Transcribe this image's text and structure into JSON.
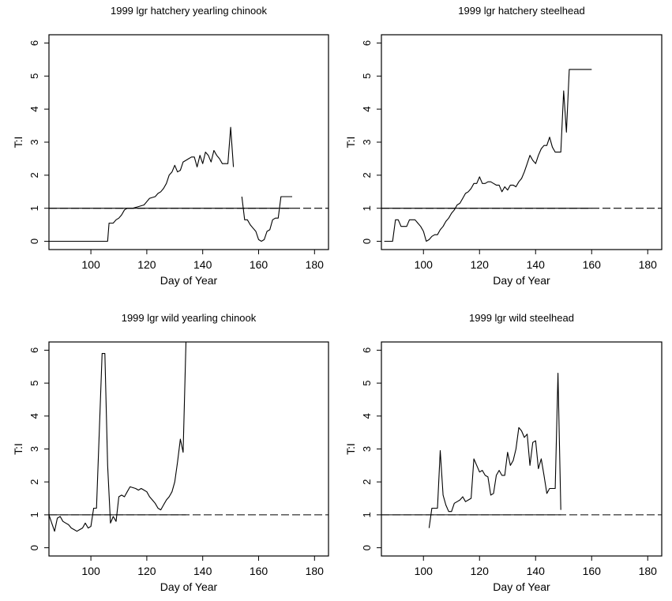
{
  "chart_data": [
    {
      "type": "line",
      "title": "1999 lgr hatchery yearling chinook",
      "xlabel": "Day of Year",
      "ylabel": "T:I",
      "xlim": [
        85,
        185
      ],
      "ylim": [
        -0.25,
        6.25
      ],
      "xticks": [
        100,
        120,
        140,
        160,
        180
      ],
      "yticks": [
        0,
        1,
        2,
        3,
        4,
        5,
        6
      ],
      "grid": false,
      "legend": "none",
      "reference_line": 1,
      "series": [
        {
          "segments": [
            [
              [
                85,
                0
              ],
              [
                106,
                0
              ],
              [
                106.5,
                0.55
              ],
              [
                108,
                0.55
              ],
              [
                109,
                0.65
              ],
              [
                110,
                0.7
              ],
              [
                111,
                0.8
              ],
              [
                112,
                0.95
              ],
              [
                113,
                1.0
              ],
              [
                115,
                1.0
              ],
              [
                117,
                1.05
              ],
              [
                119,
                1.1
              ],
              [
                120,
                1.2
              ],
              [
                121,
                1.3
              ],
              [
                123,
                1.35
              ],
              [
                124,
                1.45
              ],
              [
                125,
                1.5
              ],
              [
                126,
                1.6
              ],
              [
                127,
                1.75
              ],
              [
                128,
                2.0
              ],
              [
                129,
                2.1
              ],
              [
                130,
                2.3
              ],
              [
                131,
                2.1
              ],
              [
                132,
                2.15
              ],
              [
                133,
                2.4
              ],
              [
                134,
                2.45
              ],
              [
                135,
                2.5
              ],
              [
                136,
                2.55
              ],
              [
                137,
                2.55
              ],
              [
                138,
                2.25
              ],
              [
                139,
                2.6
              ],
              [
                140,
                2.35
              ],
              [
                141,
                2.7
              ],
              [
                142,
                2.6
              ],
              [
                143,
                2.4
              ],
              [
                144,
                2.75
              ],
              [
                145,
                2.6
              ],
              [
                146,
                2.5
              ],
              [
                147,
                2.35
              ],
              [
                148,
                2.35
              ],
              [
                149,
                2.35
              ],
              [
                150,
                3.45
              ],
              [
                151,
                2.25
              ]
            ],
            [
              [
                154,
                1.35
              ],
              [
                155,
                0.65
              ],
              [
                156,
                0.65
              ],
              [
                157,
                0.5
              ],
              [
                158,
                0.4
              ],
              [
                159,
                0.3
              ],
              [
                160,
                0.05
              ],
              [
                161,
                0.0
              ],
              [
                162,
                0.05
              ],
              [
                163,
                0.3
              ],
              [
                164,
                0.35
              ],
              [
                165,
                0.65
              ],
              [
                166,
                0.7
              ],
              [
                167,
                0.7
              ],
              [
                168,
                1.35
              ],
              [
                172,
                1.35
              ]
            ]
          ]
        }
      ]
    },
    {
      "type": "line",
      "title": "1999 lgr hatchery steelhead",
      "xlabel": "Day of Year",
      "ylabel": "T:I",
      "xlim": [
        85,
        185
      ],
      "ylim": [
        -0.25,
        6.25
      ],
      "xticks": [
        100,
        120,
        140,
        160,
        180
      ],
      "yticks": [
        0,
        1,
        2,
        3,
        4,
        5,
        6
      ],
      "grid": false,
      "legend": "none",
      "reference_line": 1,
      "series": [
        {
          "segments": [
            [
              [
                86,
                0
              ],
              [
                89,
                0
              ],
              [
                90,
                0.65
              ],
              [
                91,
                0.65
              ],
              [
                92,
                0.45
              ],
              [
                93,
                0.45
              ],
              [
                94,
                0.45
              ],
              [
                95,
                0.65
              ],
              [
                97,
                0.65
              ],
              [
                98,
                0.55
              ],
              [
                99,
                0.45
              ],
              [
                100,
                0.3
              ],
              [
                101,
                0.0
              ],
              [
                102,
                0.05
              ],
              [
                103,
                0.15
              ],
              [
                104,
                0.2
              ],
              [
                105,
                0.2
              ],
              [
                106,
                0.35
              ],
              [
                107,
                0.45
              ],
              [
                108,
                0.6
              ],
              [
                109,
                0.7
              ],
              [
                110,
                0.85
              ],
              [
                111,
                0.95
              ],
              [
                112,
                1.1
              ],
              [
                113,
                1.15
              ],
              [
                114,
                1.3
              ],
              [
                115,
                1.45
              ],
              [
                116,
                1.5
              ],
              [
                117,
                1.6
              ],
              [
                118,
                1.75
              ],
              [
                119,
                1.75
              ],
              [
                120,
                1.95
              ],
              [
                121,
                1.75
              ],
              [
                122,
                1.75
              ],
              [
                123,
                1.8
              ],
              [
                124,
                1.8
              ],
              [
                125,
                1.75
              ],
              [
                126,
                1.7
              ],
              [
                127,
                1.7
              ],
              [
                128,
                1.5
              ],
              [
                129,
                1.65
              ],
              [
                130,
                1.55
              ],
              [
                131,
                1.7
              ],
              [
                132,
                1.7
              ],
              [
                133,
                1.65
              ],
              [
                134,
                1.8
              ],
              [
                135,
                1.9
              ],
              [
                136,
                2.1
              ],
              [
                137,
                2.35
              ],
              [
                138,
                2.6
              ],
              [
                139,
                2.45
              ],
              [
                140,
                2.35
              ],
              [
                141,
                2.6
              ],
              [
                142,
                2.8
              ],
              [
                143,
                2.9
              ],
              [
                144,
                2.9
              ],
              [
                145,
                3.15
              ],
              [
                146,
                2.85
              ],
              [
                147,
                2.7
              ],
              [
                148,
                2.7
              ],
              [
                149,
                2.7
              ],
              [
                150,
                4.55
              ],
              [
                151,
                3.3
              ],
              [
                152,
                5.2
              ],
              [
                160,
                5.2
              ]
            ]
          ]
        }
      ]
    },
    {
      "type": "line",
      "title": "1999 lgr wild yearling chinook",
      "xlabel": "Day of Year",
      "ylabel": "T:I",
      "xlim": [
        85,
        185
      ],
      "ylim": [
        -0.25,
        6.25
      ],
      "xticks": [
        100,
        120,
        140,
        160,
        180
      ],
      "yticks": [
        0,
        1,
        2,
        3,
        4,
        5,
        6
      ],
      "grid": false,
      "legend": "none",
      "reference_line": 1,
      "series": [
        {
          "segments": [
            [
              [
                85,
                1.0
              ],
              [
                86,
                0.75
              ],
              [
                87,
                0.5
              ],
              [
                88,
                0.9
              ],
              [
                89,
                0.95
              ],
              [
                90,
                0.8
              ],
              [
                91,
                0.75
              ],
              [
                92,
                0.7
              ],
              [
                93,
                0.6
              ],
              [
                94,
                0.55
              ],
              [
                95,
                0.5
              ],
              [
                96,
                0.55
              ],
              [
                97,
                0.6
              ],
              [
                98,
                0.75
              ],
              [
                99,
                0.6
              ],
              [
                100,
                0.65
              ],
              [
                101,
                1.2
              ],
              [
                102,
                1.2
              ],
              [
                103,
                3.5
              ],
              [
                104,
                5.9
              ],
              [
                105,
                5.9
              ],
              [
                106,
                2.5
              ],
              [
                107,
                0.75
              ],
              [
                108,
                0.95
              ],
              [
                109,
                0.8
              ],
              [
                110,
                1.55
              ],
              [
                111,
                1.6
              ],
              [
                112,
                1.55
              ],
              [
                113,
                1.7
              ],
              [
                114,
                1.85
              ],
              [
                116,
                1.8
              ],
              [
                117,
                1.75
              ],
              [
                118,
                1.8
              ],
              [
                119,
                1.75
              ],
              [
                120,
                1.7
              ],
              [
                121,
                1.55
              ],
              [
                122,
                1.45
              ],
              [
                123,
                1.35
              ],
              [
                124,
                1.2
              ],
              [
                125,
                1.15
              ],
              [
                126,
                1.3
              ],
              [
                127,
                1.45
              ],
              [
                128,
                1.55
              ],
              [
                129,
                1.7
              ],
              [
                130,
                2.0
              ],
              [
                131,
                2.6
              ],
              [
                132,
                3.3
              ],
              [
                133,
                2.9
              ],
              [
                134,
                6.3
              ]
            ]
          ]
        }
      ]
    },
    {
      "type": "line",
      "title": "1999 lgr wild steelhead",
      "xlabel": "Day of Year",
      "ylabel": "T:I",
      "xlim": [
        85,
        185
      ],
      "ylim": [
        -0.25,
        6.25
      ],
      "xticks": [
        100,
        120,
        140,
        160,
        180
      ],
      "yticks": [
        0,
        1,
        2,
        3,
        4,
        5,
        6
      ],
      "grid": false,
      "legend": "none",
      "reference_line": 1,
      "series": [
        {
          "segments": [
            [
              [
                102,
                0.6
              ],
              [
                103,
                1.2
              ],
              [
                104,
                1.2
              ],
              [
                105,
                1.2
              ],
              [
                106,
                2.95
              ],
              [
                107,
                1.6
              ],
              [
                108,
                1.3
              ],
              [
                109,
                1.1
              ],
              [
                110,
                1.1
              ],
              [
                111,
                1.35
              ],
              [
                112,
                1.4
              ],
              [
                113,
                1.45
              ],
              [
                114,
                1.55
              ],
              [
                115,
                1.4
              ],
              [
                116,
                1.45
              ],
              [
                117,
                1.5
              ],
              [
                118,
                2.7
              ],
              [
                119,
                2.5
              ],
              [
                120,
                2.3
              ],
              [
                121,
                2.35
              ],
              [
                122,
                2.2
              ],
              [
                123,
                2.15
              ],
              [
                124,
                1.6
              ],
              [
                125,
                1.65
              ],
              [
                126,
                2.2
              ],
              [
                127,
                2.35
              ],
              [
                128,
                2.2
              ],
              [
                129,
                2.2
              ],
              [
                130,
                2.9
              ],
              [
                131,
                2.5
              ],
              [
                132,
                2.65
              ],
              [
                133,
                3.0
              ],
              [
                134,
                3.65
              ],
              [
                135,
                3.55
              ],
              [
                136,
                3.35
              ],
              [
                137,
                3.45
              ],
              [
                138,
                2.5
              ],
              [
                139,
                3.2
              ],
              [
                140,
                3.25
              ],
              [
                141,
                2.4
              ],
              [
                142,
                2.7
              ],
              [
                143,
                2.2
              ],
              [
                144,
                1.65
              ],
              [
                145,
                1.8
              ],
              [
                146,
                1.8
              ],
              [
                147,
                1.8
              ],
              [
                148,
                5.3
              ],
              [
                149,
                1.15
              ]
            ]
          ]
        }
      ]
    }
  ]
}
